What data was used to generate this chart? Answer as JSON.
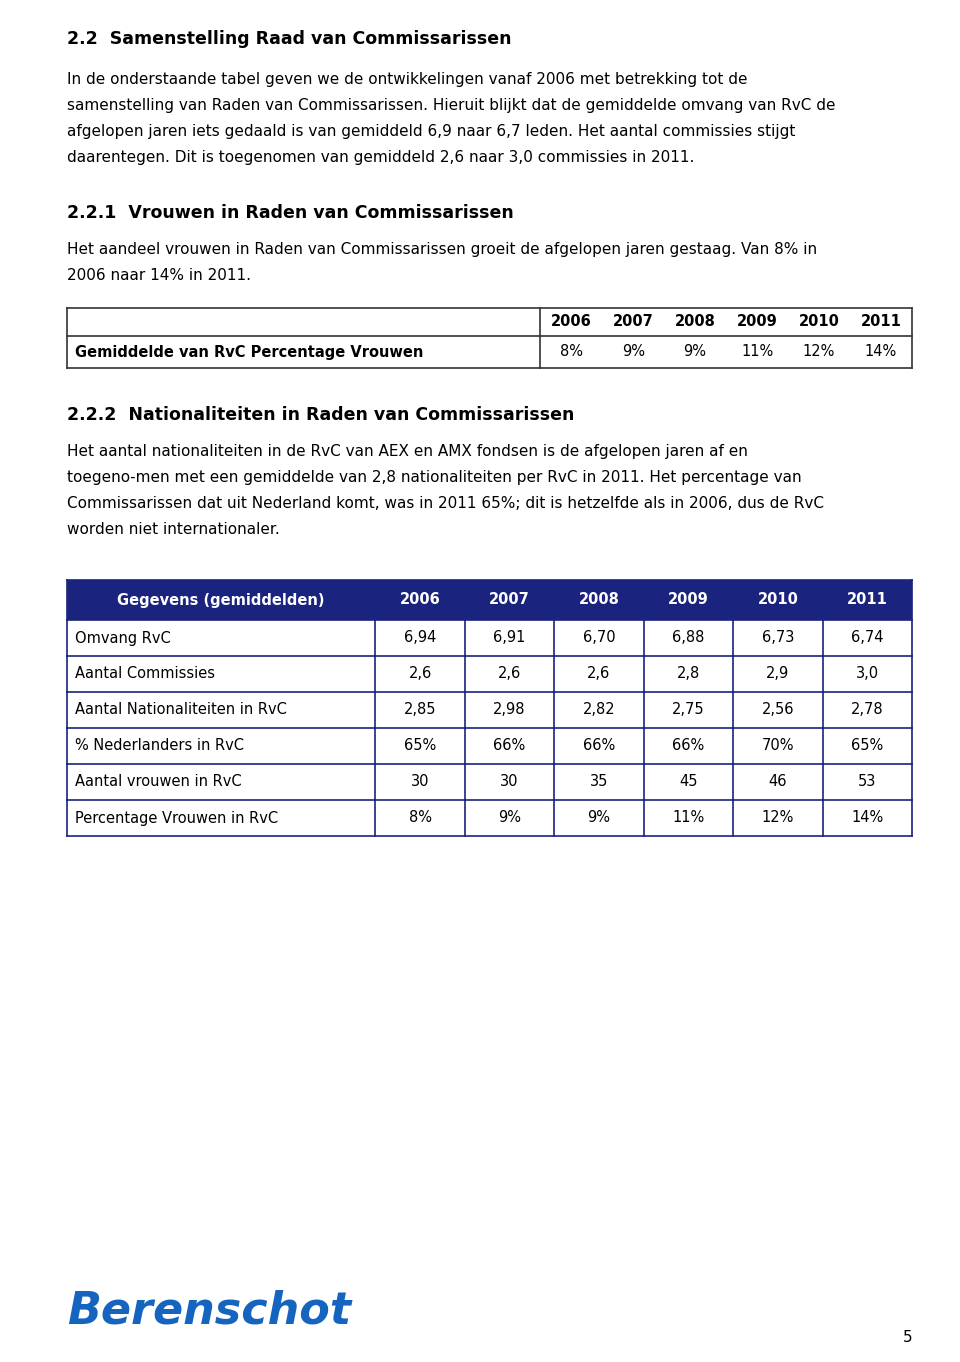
{
  "page_bg": "#ffffff",
  "section_title_1": "2.2  Samenstelling Raad van Commissarissen",
  "para_1": "In de onderstaande tabel geven we de ontwikkelingen vanaf 2006 met betrekking tot de\nsamenstelling van Raden van Commissarissen. Hieruit blijkt dat de gemiddelde omvang van RvC de\nafgelopen jaren iets gedaald is van gemiddeld 6,9 naar 6,7 leden. Het aantal commissies stijgt\ndaarentegen. Dit is toegenomen van gemiddeld 2,6 naar 3,0 commissies in 2011.",
  "section_title_2": "2.2.1  Vrouwen in Raden van Commissarissen",
  "para_2": "Het aandeel vrouwen in Raden van Commissarissen groeit de afgelopen jaren gestaag. Van 8% in\n2006 naar 14% in 2011.",
  "small_table_header_years": [
    "2006",
    "2007",
    "2008",
    "2009",
    "2010",
    "2011"
  ],
  "small_table_row_label": "Gemiddelde van RvC Percentage Vrouwen",
  "small_table_row_values": [
    "8%",
    "9%",
    "9%",
    "11%",
    "12%",
    "14%"
  ],
  "section_title_3": "2.2.2  Nationaliteiten in Raden van Commissarissen",
  "para_3": "Het aantal nationaliteiten in de RvC van AEX en AMX fondsen is de afgelopen jaren af en\ntoegeno­men met een gemiddelde van 2,8 nationaliteiten per RvC in 2011. Het percentage van\nCommissarissen dat uit Nederland komt, was in 2011 65%; dit is hetzelfde als in 2006, dus de RvC\nworden niet internationaler.",
  "big_table_header_bg": "#1a237e",
  "big_table_header_fg": "#ffffff",
  "big_table_border": "#1a237e",
  "big_table_columns": [
    "Gegevens (gemiddelden)",
    "2006",
    "2007",
    "2008",
    "2009",
    "2010",
    "2011"
  ],
  "big_table_rows": [
    [
      "Omvang RvC",
      "6,94",
      "6,91",
      "6,70",
      "6,88",
      "6,73",
      "6,74"
    ],
    [
      "Aantal Commissies",
      "2,6",
      "2,6",
      "2,6",
      "2,8",
      "2,9",
      "3,0"
    ],
    [
      "Aantal Nationaliteiten in RvC",
      "2,85",
      "2,98",
      "2,82",
      "2,75",
      "2,56",
      "2,78"
    ],
    [
      "% Nederlanders in RvC",
      "65%",
      "66%",
      "66%",
      "66%",
      "70%",
      "65%"
    ],
    [
      "Aantal vrouwen in RvC",
      "30",
      "30",
      "35",
      "45",
      "46",
      "53"
    ],
    [
      "Percentage Vrouwen in RvC",
      "8%",
      "9%",
      "9%",
      "11%",
      "12%",
      "14%"
    ]
  ],
  "berenschot_color": "#1565c0",
  "page_number": "5",
  "small_table_border": "#333333"
}
